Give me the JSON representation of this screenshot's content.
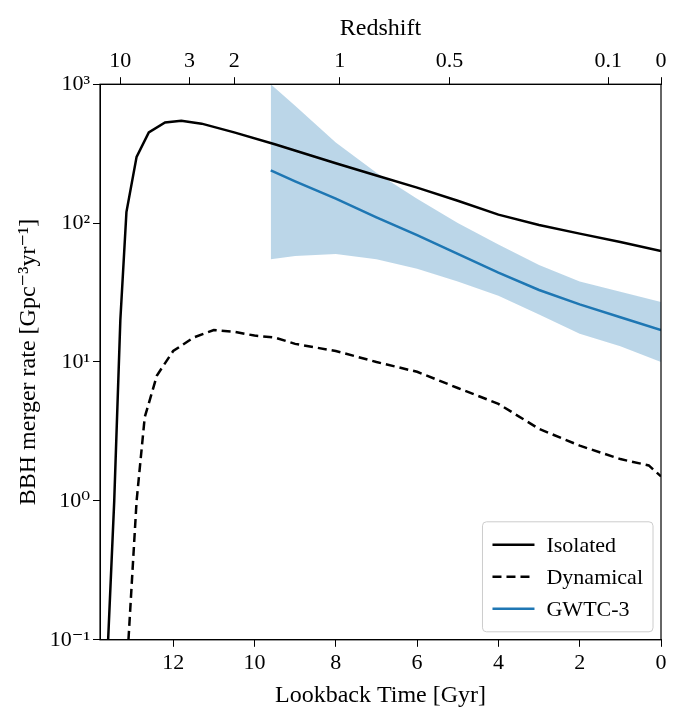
{
  "chart_data": {
    "type": "line",
    "xlabel": "Lookback Time [Gyr]",
    "ylabel": "BBH merger rate [Gpc⁻³yr⁻¹]",
    "x2label": "Redshift",
    "xlim": [
      13.8,
      0
    ],
    "xticks": [
      12,
      10,
      8,
      6,
      4,
      2,
      0
    ],
    "x2ticks": [
      {
        "value": 13.3,
        "label": "10"
      },
      {
        "value": 11.6,
        "label": "3"
      },
      {
        "value": 10.5,
        "label": "2"
      },
      {
        "value": 7.9,
        "label": "1"
      },
      {
        "value": 5.2,
        "label": "0.5"
      },
      {
        "value": 1.3,
        "label": "0.1"
      },
      {
        "value": 0,
        "label": "0"
      }
    ],
    "ylim": [
      0.1,
      1000
    ],
    "yticks": [
      {
        "value": 0.1,
        "label": "10⁻¹"
      },
      {
        "value": 1,
        "label": "10⁰"
      },
      {
        "value": 10,
        "label": "10¹"
      },
      {
        "value": 100,
        "label": "10²"
      },
      {
        "value": 1000,
        "label": "10³"
      }
    ],
    "log": "y",
    "grid": false,
    "legend": "lower right",
    "series": [
      {
        "name": "Isolated",
        "color": "#000000",
        "line_style": "solid",
        "x": [
          13.6,
          13.45,
          13.3,
          13.15,
          12.9,
          12.6,
          12.2,
          11.8,
          11.3,
          10.5,
          9.5,
          8,
          7,
          6,
          5,
          4,
          3,
          2,
          1,
          0
        ],
        "values": [
          0.1,
          1,
          20,
          120,
          300,
          450,
          530,
          545,
          520,
          450,
          370,
          270,
          220,
          180,
          145,
          115,
          97,
          84,
          73,
          63
        ]
      },
      {
        "name": "Dynamical",
        "color": "#000000",
        "line_style": "dashed",
        "x": [
          13.1,
          12.9,
          12.7,
          12.4,
          12,
          11.5,
          11,
          10.5,
          10,
          9.5,
          9,
          8,
          7,
          6,
          5,
          4,
          3,
          2,
          1,
          0.3,
          0
        ],
        "values": [
          0.1,
          1,
          4,
          8,
          12,
          15,
          17,
          16.5,
          15.5,
          15,
          13.5,
          12,
          10,
          8.5,
          6.5,
          5,
          3.3,
          2.5,
          2,
          1.8,
          1.5
        ]
      },
      {
        "name": "GWTC-3",
        "color": "#1f77b4",
        "line_style": "solid",
        "x": [
          9.6,
          9,
          8,
          7,
          6,
          5,
          4,
          3,
          2,
          1,
          0
        ],
        "values": [
          240,
          200,
          150,
          110,
          82,
          60,
          44,
          33,
          26,
          21,
          17
        ],
        "lower": [
          55,
          58,
          60,
          55,
          47,
          38,
          30,
          22,
          16,
          13,
          10
        ],
        "upper": [
          1000,
          700,
          380,
          230,
          150,
          100,
          70,
          50,
          38,
          32,
          27
        ]
      }
    ]
  }
}
